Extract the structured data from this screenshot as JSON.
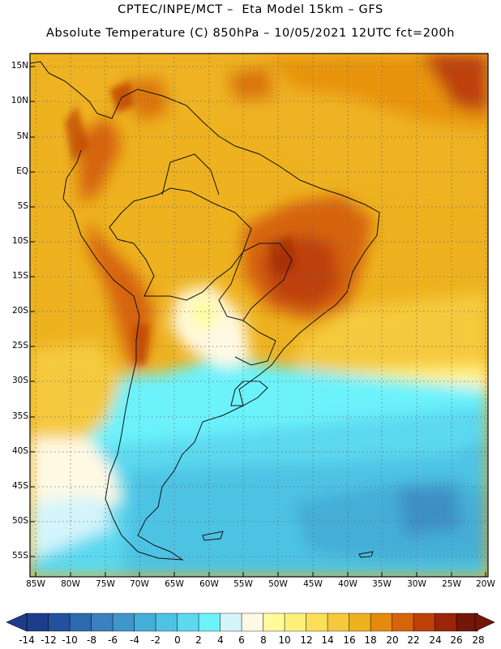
{
  "header": {
    "line1": "CPTEC/INPE/MCT –  Eta Model 15km – GFS",
    "line2": "Absolute Temperature (C) 850hPa – 10/05/2021 12UTC fct=200h"
  },
  "axes": {
    "lat_labels": [
      "15N",
      "10N",
      "5N",
      "EQ",
      "5S",
      "10S",
      "15S",
      "20S",
      "25S",
      "30S",
      "35S",
      "40S",
      "45S",
      "50S",
      "55S"
    ],
    "lon_labels": [
      "85W",
      "80W",
      "75W",
      "70W",
      "65W",
      "60W",
      "55W",
      "50W",
      "45W",
      "40W",
      "35W",
      "30W",
      "25W",
      "20W"
    ]
  },
  "colorbar": {
    "labels": [
      "-14",
      "-12",
      "-10",
      "-8",
      "-6",
      "-4",
      "-2",
      "0",
      "2",
      "4",
      "6",
      "8",
      "10",
      "12",
      "14",
      "16",
      "18",
      "20",
      "22",
      "24",
      "26",
      "28"
    ],
    "colors": [
      "#1d3d8c",
      "#21519f",
      "#2c6aae",
      "#3a82bd",
      "#3f97c9",
      "#44aed6",
      "#4dc3e4",
      "#5cd8ef",
      "#6cf2fb",
      "#d3f5fb",
      "#fff9e4",
      "#fffb9b",
      "#fff07a",
      "#fbdf58",
      "#f5c93e",
      "#eeb220",
      "#e58a0c",
      "#d5640a",
      "#bd4007",
      "#9c2408",
      "#741608"
    ]
  }
}
